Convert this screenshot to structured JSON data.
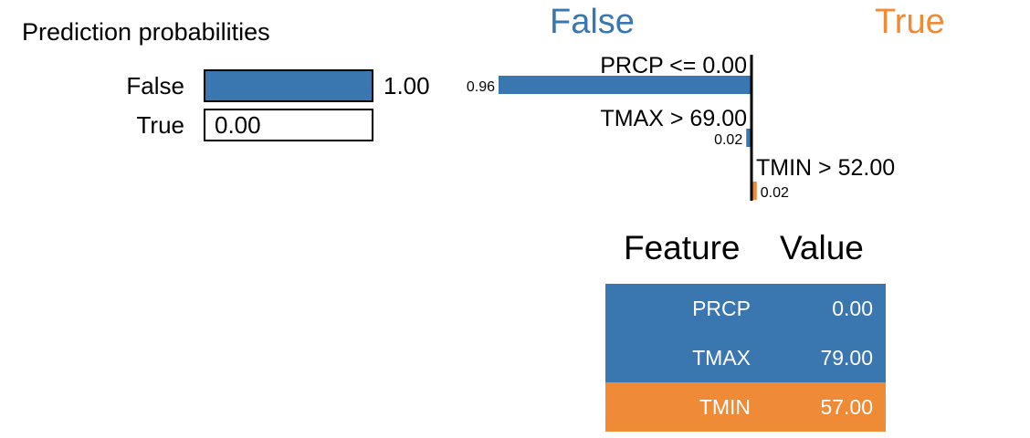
{
  "colors": {
    "false_class": "#3a76b0",
    "true_class": "#ef8a36",
    "axis": "#000000"
  },
  "prediction_probabilities": {
    "title": "Prediction probabilities",
    "rows": [
      {
        "label": "False",
        "value": 1.0,
        "value_text": "1.00",
        "color": "#3a76b0"
      },
      {
        "label": "True",
        "value": 0.0,
        "value_text": "0.00",
        "color": "#ef8a36"
      }
    ]
  },
  "explanation": {
    "left_class": "False",
    "right_class": "True"
  },
  "table": {
    "header_feature": "Feature",
    "header_value": "Value",
    "rows": [
      {
        "feature": "PRCP",
        "value": "0.00",
        "color": "#3a76b0"
      },
      {
        "feature": "TMAX",
        "value": "79.00",
        "color": "#3a76b0"
      },
      {
        "feature": "TMIN",
        "value": "57.00",
        "color": "#ef8a36"
      }
    ]
  },
  "chart_data": {
    "type": "bar",
    "categories": [
      "PRCP <= 0.00",
      "TMAX > 69.00",
      "TMIN > 52.00"
    ],
    "values": [
      -0.96,
      -0.02,
      0.02
    ],
    "value_labels": [
      "0.96",
      "0.02",
      "0.02"
    ],
    "series": [
      {
        "name": "False",
        "values": [
          0.96,
          0.02,
          0
        ]
      },
      {
        "name": "True",
        "values": [
          0,
          0,
          0.02
        ]
      }
    ],
    "title": "",
    "xlabel": "",
    "ylabel": ""
  }
}
